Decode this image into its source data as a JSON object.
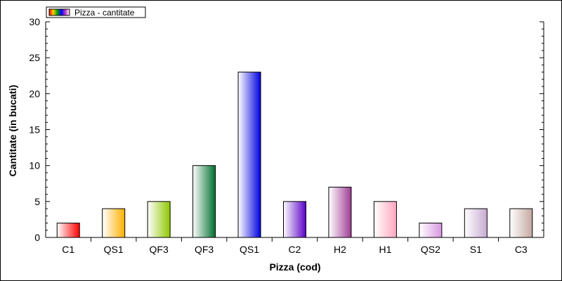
{
  "chart_data": {
    "type": "bar",
    "title": "",
    "xlabel": "Pizza (cod)",
    "ylabel": "Cantitate (in bucati)",
    "categories": [
      "C1",
      "QS1",
      "QF3",
      "QF3",
      "QS1",
      "C2",
      "H2",
      "H1",
      "QS2",
      "S1",
      "C3"
    ],
    "series": [
      {
        "name": "Pizza - cantitate",
        "values": [
          2,
          4,
          5,
          10,
          23,
          5,
          7,
          5,
          2,
          4,
          4
        ]
      }
    ],
    "ylim": [
      0,
      30
    ],
    "yticks": [
      0,
      5,
      10,
      15,
      20,
      25,
      30
    ],
    "grid": false,
    "legend_position": "top-left",
    "bar_colors": [
      "#ff0000",
      "#ffb000",
      "#8fc800",
      "#006f2e",
      "#0000e0",
      "#5a00c8",
      "#a03c96",
      "#ffa6be",
      "#d896e0",
      "#c8aad2",
      "#c4a8a0"
    ]
  }
}
